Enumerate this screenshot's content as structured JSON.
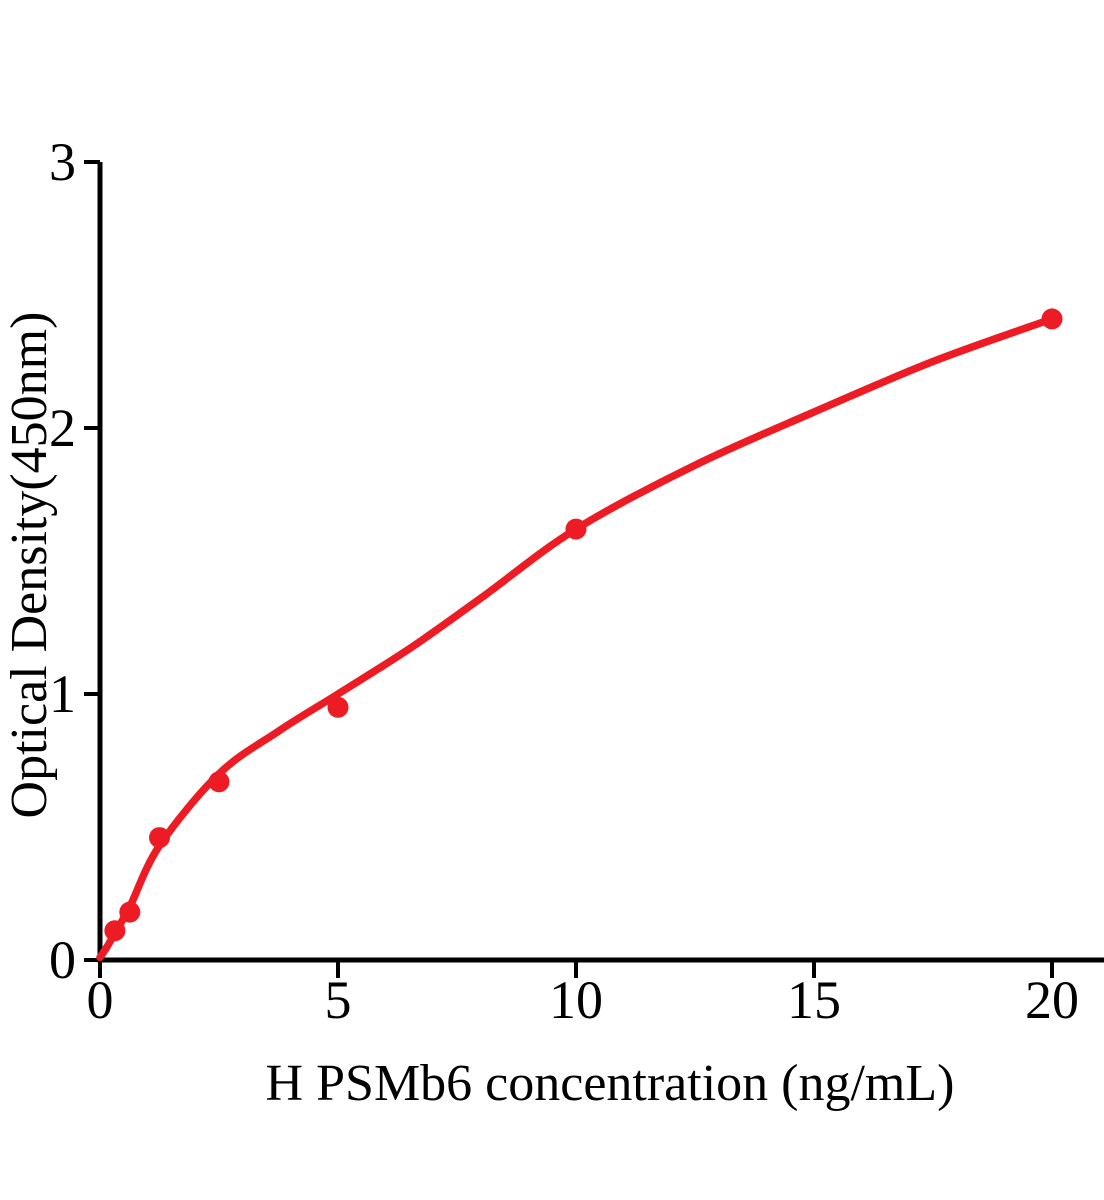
{
  "chart_data": {
    "type": "scatter",
    "title": "",
    "xlabel": "H PSMb6 concentration (ng/mL)",
    "ylabel": "Optical Density(450nm)",
    "xlim": [
      0,
      21.1
    ],
    "ylim": [
      0,
      3
    ],
    "x_ticks": [
      0,
      5,
      10,
      15,
      20
    ],
    "y_ticks": [
      0,
      1,
      2,
      3
    ],
    "grid": false,
    "legend": "none",
    "axis_color": "#000000",
    "series": [
      {
        "marker": "circle",
        "marker_color": "#ed1c24",
        "line_color": "#ed1c24",
        "points": [
          {
            "x": 0.3125,
            "y": 0.11
          },
          {
            "x": 0.625,
            "y": 0.18
          },
          {
            "x": 1.25,
            "y": 0.46
          },
          {
            "x": 2.5,
            "y": 0.67
          },
          {
            "x": 5,
            "y": 0.95
          },
          {
            "x": 10,
            "y": 1.62
          },
          {
            "x": 20,
            "y": 2.41
          }
        ],
        "fit_curve": [
          [
            0,
            0.01
          ],
          [
            0.15,
            0.05
          ],
          [
            0.31,
            0.1
          ],
          [
            0.625,
            0.2
          ],
          [
            1.25,
            0.43
          ],
          [
            2.5,
            0.7
          ],
          [
            3.75,
            0.86
          ],
          [
            5,
            1.0
          ],
          [
            6.5,
            1.17
          ],
          [
            8,
            1.36
          ],
          [
            10,
            1.62
          ],
          [
            12.5,
            1.86
          ],
          [
            15,
            2.06
          ],
          [
            17.5,
            2.25
          ],
          [
            20,
            2.41
          ]
        ]
      }
    ]
  }
}
